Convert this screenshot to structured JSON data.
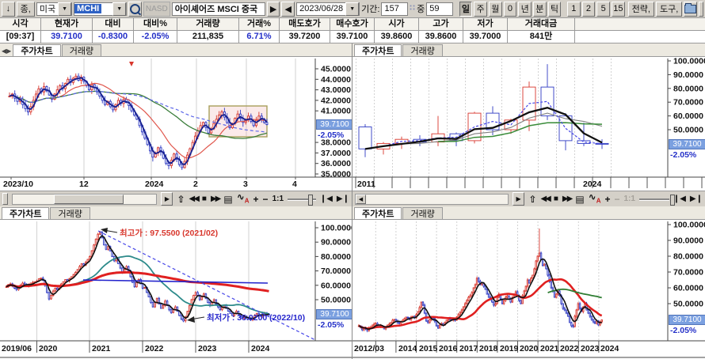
{
  "toolbar": {
    "down_button": "↓",
    "jong_button": "종,",
    "market_select": "미국",
    "symbol_input": "MCHI",
    "exchange_badge": "NASD",
    "name_display": "아이셰어즈 MSCI 중국",
    "play_button": "▶",
    "back_button": "◀",
    "date_value": "2023/06/28",
    "range_label": "기간:",
    "range_value": "157",
    "count_label": "중",
    "count_value": "59",
    "timeframes": [
      "일",
      "주",
      "월",
      "0",
      "년",
      "분",
      "틱"
    ],
    "minute_presets": [
      "1",
      "2",
      "5",
      "15"
    ],
    "strategy_button": "전략,",
    "tools_button": "도구,"
  },
  "quote": {
    "headers": [
      "시각",
      "현재가",
      "대비",
      "대비%",
      "거래량",
      "거래%",
      "매도호가",
      "매수호가",
      "시가",
      "고가",
      "저가",
      "거래대금"
    ],
    "values": [
      "[09:37]",
      "39.7100",
      "-0.8300",
      "-2.05%",
      "211,835",
      "6.71%",
      "39.7200",
      "39.7100",
      "39.8600",
      "39.8600",
      "39.7000",
      "841만"
    ]
  },
  "chart_toolbar": {
    "icons": {
      "expand": "⇧",
      "rewind": "◀◀",
      "stop": "■",
      "forward": "▶▶",
      "settings_page": "▤",
      "auto_scale": "∿",
      "auto_scale_sub": "A",
      "zoom_in": "+",
      "zoom_out": "−",
      "ratio": "1:1",
      "first": "◀",
      "last": "▶",
      "scroll_left": "◀",
      "scroll_right": "▶"
    }
  },
  "colors": {
    "up_candle": "#d8372d",
    "down_candle": "#2f3bc4",
    "price_tag_bg": "#7ba0e0",
    "negative_text": "#2430c8"
  },
  "panels": {
    "daily": {
      "tabs": [
        "주가차트",
        "거래량"
      ],
      "x_labels": [
        "2023/10",
        "12",
        "2024",
        "2",
        "3",
        "4"
      ],
      "y_ticks": [
        "45.0000",
        "44.0000",
        "43.0000",
        "42.0000",
        "41.0000",
        "38.0000",
        "37.0000",
        "36.0000",
        "35.0000"
      ],
      "price_tag": {
        "price": "39.7100",
        "change": "-2.05%"
      },
      "closes": [
        42.4,
        42.6,
        42.2,
        41.9,
        42.1,
        41.6,
        41.2,
        40.9,
        41.4,
        42.0,
        42.6,
        43.1,
        42.8,
        43.3,
        42.9,
        42.5,
        42.1,
        42.6,
        43.0,
        43.4,
        43.1,
        43.6,
        44.0,
        43.7,
        44.1,
        44.3,
        43.9,
        44.2,
        43.8,
        43.4,
        43.0,
        43.5,
        43.2,
        42.8,
        42.4,
        42.0,
        41.6,
        41.9,
        41.4,
        41.1,
        41.6,
        42.0,
        41.7,
        42.1,
        41.8,
        41.5,
        41.0,
        40.6,
        40.2,
        39.6,
        39.0,
        38.4,
        37.8,
        37.2,
        36.6,
        37.0,
        37.5,
        37.1,
        36.5,
        36.0,
        35.8,
        36.3,
        36.9,
        36.4,
        35.9,
        35.6,
        36.2,
        36.8,
        37.4,
        38.0,
        38.6,
        39.1,
        39.6,
        39.9,
        39.4,
        38.9,
        39.3,
        39.8,
        40.2,
        40.6,
        40.9,
        40.4,
        39.9,
        39.4,
        39.8,
        40.3,
        40.7,
        40.3,
        39.9,
        40.2,
        40.5,
        40.0,
        39.6,
        40.1,
        40.5,
        40.2,
        39.9,
        39.7
      ]
    },
    "yearly": {
      "tabs": [
        "주가차트",
        "거래량"
      ],
      "x_labels": [
        "2011",
        "2024"
      ],
      "y_ticks": [
        "100.0000",
        "90.0000",
        "80.0000",
        "70.0000",
        "60.0000",
        "50.0000"
      ],
      "price_tag": {
        "price": "39.7100",
        "change": "-2.05%"
      },
      "candles": [
        [
          52,
          54,
          30,
          36
        ],
        [
          36,
          41,
          32,
          40
        ],
        [
          40,
          45,
          36,
          43
        ],
        [
          43,
          46,
          38,
          41
        ],
        [
          41,
          60,
          38,
          47
        ],
        [
          47,
          48,
          38,
          42
        ],
        [
          42,
          63,
          40,
          62
        ],
        [
          62,
          67,
          46,
          50
        ],
        [
          50,
          58,
          47,
          57
        ],
        [
          57,
          85,
          49,
          81
        ],
        [
          81,
          97.6,
          57,
          60
        ],
        [
          60,
          62,
          35,
          42
        ],
        [
          42,
          55,
          38,
          40
        ],
        [
          40,
          43,
          36,
          39.7
        ]
      ]
    },
    "weekly": {
      "tabs": [
        "주가차트",
        "거래량"
      ],
      "x_labels": [
        "2019/06",
        "2020",
        "2021",
        "2022",
        "2023",
        "2024"
      ],
      "y_ticks": [
        "100.0000",
        "90.0000",
        "80.0000",
        "70.0000",
        "60.0000",
        "50.0000"
      ],
      "price_tag": {
        "price": "39.7100",
        "change": "-2.05%"
      },
      "annotations": {
        "high": "최고가 : 97.5500 (2021/02)",
        "low": "최저가 : 35.0200 (2022/10)"
      },
      "closes": [
        59,
        60.5,
        61,
        59.5,
        58,
        57,
        58.5,
        60,
        61.5,
        60.5,
        59.5,
        60.5,
        61.5,
        62,
        62.5,
        63,
        64.5,
        65,
        63.5,
        60,
        55,
        50.5,
        53,
        56,
        58,
        57,
        59,
        61,
        62.5,
        64,
        63,
        64.5,
        66,
        67.5,
        69,
        71,
        73,
        75,
        74,
        76,
        78,
        80,
        84,
        88,
        92,
        95.5,
        97,
        93,
        88,
        85,
        87,
        84,
        80,
        77,
        79,
        75,
        72,
        69,
        71,
        73,
        70,
        66,
        62,
        59,
        62,
        64,
        61,
        58,
        58.5,
        55,
        52,
        48,
        45,
        48,
        51,
        47,
        44,
        46,
        49,
        46,
        43,
        41,
        43,
        45,
        42,
        39,
        36.5,
        35.3,
        38,
        42,
        46,
        50,
        53,
        55,
        53,
        50,
        52,
        54,
        51,
        48,
        46,
        48,
        50,
        47,
        45,
        43,
        44.5,
        46,
        44,
        42,
        40.5,
        39,
        40.5,
        42,
        40,
        38,
        37,
        38.5,
        37.5,
        36.5,
        36,
        37.5,
        39,
        40.5,
        39.5,
        38.5,
        39.5,
        40.5,
        40,
        39.7
      ]
    },
    "monthly": {
      "tabs": [
        "주가차트",
        "거래량"
      ],
      "x_labels": [
        "2012/03",
        "2014",
        "2015",
        "2016",
        "2017",
        "2018",
        "2019",
        "2020",
        "2021",
        "2022",
        "2023",
        "2024"
      ],
      "y_ticks": [
        "100.0000",
        "90.0000",
        "80.0000",
        "70.0000",
        "60.0000",
        "50.0000"
      ],
      "price_tag": {
        "price": "39.7100",
        "change": "-2.05%"
      },
      "closes": [
        36,
        35,
        33.5,
        34.5,
        34,
        33,
        34.5,
        35,
        36,
        37,
        37.5,
        36.5,
        35.5,
        36,
        35,
        34,
        35.5,
        36.5,
        37,
        38,
        39.5,
        40,
        39,
        38,
        37.5,
        38.5,
        39.5,
        40.5,
        41.5,
        41,
        40,
        41.5,
        42,
        41,
        43,
        45,
        47.5,
        51,
        49,
        44,
        39,
        38,
        40,
        41.5,
        40.5,
        39,
        36,
        34.5,
        36.5,
        37.5,
        36.5,
        38,
        39.5,
        40.5,
        40,
        39.5,
        40.5,
        39.5,
        41.5,
        43,
        44.5,
        46,
        48,
        50,
        52,
        54,
        55,
        57,
        60,
        62,
        66,
        64,
        62,
        63,
        61,
        59,
        56,
        54,
        53,
        51,
        49,
        50,
        54,
        56,
        53,
        50,
        52,
        54,
        55,
        53,
        51,
        54,
        56,
        57.5,
        55,
        52,
        50,
        55,
        58,
        61,
        65,
        63,
        66,
        68,
        72,
        77,
        80,
        82,
        78,
        74,
        75,
        72,
        68,
        64,
        60,
        58,
        54,
        56,
        58,
        55,
        50,
        47,
        46,
        44,
        42,
        38,
        36,
        35.5,
        42,
        46,
        50,
        47,
        45,
        48,
        50,
        46,
        44,
        42,
        40,
        38.5,
        37.5,
        39,
        36.5,
        38.5,
        39.7
      ]
    }
  }
}
